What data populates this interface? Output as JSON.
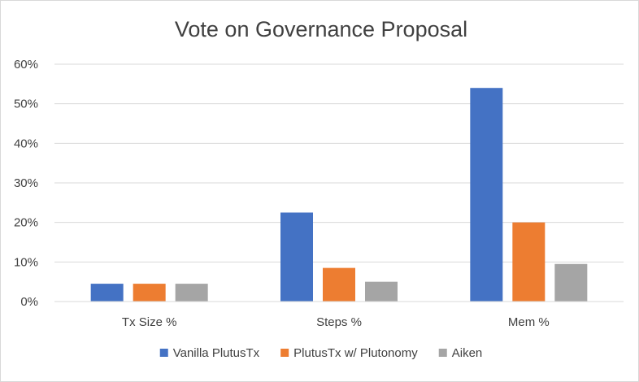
{
  "chart_data": {
    "type": "bar",
    "title": "Vote on Governance Proposal",
    "xlabel": "",
    "ylabel": "",
    "categories": [
      "Tx Size %",
      "Steps %",
      "Mem %"
    ],
    "series": [
      {
        "name": "Vanilla PlutusTx",
        "color": "#4472c4",
        "values": [
          4.5,
          22.5,
          54
        ]
      },
      {
        "name": "PlutusTx w/ Plutonomy",
        "color": "#ed7d31",
        "values": [
          4.5,
          8.5,
          20
        ]
      },
      {
        "name": "Aiken",
        "color": "#a5a5a5",
        "values": [
          4.5,
          5,
          9.5
        ]
      }
    ],
    "ylim": [
      0,
      60
    ],
    "yticks": [
      "0%",
      "10%",
      "20%",
      "30%",
      "40%",
      "50%",
      "60%"
    ],
    "grid": true,
    "legend_position": "bottom"
  }
}
